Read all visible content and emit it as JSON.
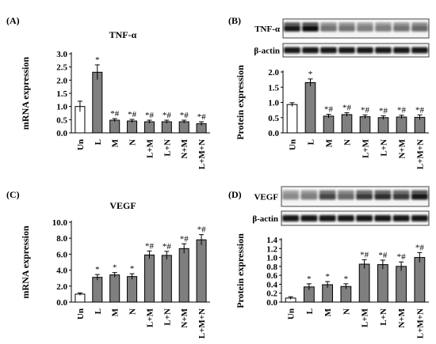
{
  "chart_data": [
    {
      "panel": "(A)",
      "type": "bar",
      "title": "TNF-α",
      "ylabel": "mRNA expression",
      "xlabel": "",
      "categories": [
        "Un",
        "L",
        "M",
        "N",
        "L+M",
        "L+N",
        "N+M",
        "L+M+N"
      ],
      "values": [
        1.0,
        2.3,
        0.48,
        0.45,
        0.42,
        0.42,
        0.42,
        0.35
      ],
      "errors": [
        0.2,
        0.28,
        0.06,
        0.06,
        0.06,
        0.06,
        0.06,
        0.07
      ],
      "sig": [
        "",
        "*",
        "*#",
        "*#",
        "*#",
        "*#",
        "*#",
        "*#"
      ],
      "ylim": [
        0,
        3.0
      ],
      "yticks": [
        "0.0",
        "0.5",
        "1.0",
        "1.5",
        "2.0",
        "2.5",
        "3.0"
      ],
      "grid": false,
      "colors": {
        "control": "#ffffff",
        "treated": "#7f7f7f"
      }
    },
    {
      "panel": "(B)",
      "type": "bar",
      "title": "",
      "ylabel": "Protein expression",
      "xlabel": "",
      "categories": [
        "Un",
        "L",
        "M",
        "N",
        "L+M",
        "L+N",
        "N+M",
        "L+M+N"
      ],
      "values": [
        0.93,
        1.65,
        0.55,
        0.6,
        0.53,
        0.5,
        0.52,
        0.51
      ],
      "errors": [
        0.06,
        0.12,
        0.06,
        0.06,
        0.06,
        0.06,
        0.06,
        0.08
      ],
      "sig": [
        "",
        "*",
        "*#",
        "*#",
        "*#",
        "*#",
        "*#",
        "*#"
      ],
      "ylim": [
        0,
        2.0
      ],
      "yticks": [
        "0.0",
        "0.5",
        "1.0",
        "1.5",
        "2.0"
      ],
      "grid": false,
      "blot_labels": [
        "TNF-α",
        "β-actin"
      ],
      "colors": {
        "control": "#ffffff",
        "treated": "#7f7f7f"
      }
    },
    {
      "panel": "(C)",
      "type": "bar",
      "title": "VEGF",
      "ylabel": "mRNA expression",
      "xlabel": "",
      "categories": [
        "Un",
        "L",
        "M",
        "N",
        "L+M",
        "L+N",
        "N+M",
        "L+M+N"
      ],
      "values": [
        1.0,
        3.1,
        3.4,
        3.2,
        5.9,
        5.85,
        6.7,
        7.8
      ],
      "errors": [
        0.15,
        0.35,
        0.3,
        0.35,
        0.5,
        0.5,
        0.6,
        0.65
      ],
      "sig": [
        "",
        "*",
        "*",
        "*",
        "*#",
        "*#",
        "*#",
        "*#"
      ],
      "ylim": [
        0,
        10.0
      ],
      "yticks": [
        "0.0",
        "2.0",
        "4.0",
        "6.0",
        "8.0",
        "10.0"
      ],
      "grid": false,
      "colors": {
        "control": "#ffffff",
        "treated": "#7f7f7f"
      }
    },
    {
      "panel": "(D)",
      "type": "bar",
      "title": "",
      "ylabel": "Protein expression",
      "xlabel": "",
      "categories": [
        "Un",
        "L",
        "M",
        "N",
        "L+M",
        "L+N",
        "N+M",
        "L+M+N"
      ],
      "values": [
        0.09,
        0.34,
        0.39,
        0.35,
        0.85,
        0.84,
        0.8,
        1.0
      ],
      "errors": [
        0.03,
        0.07,
        0.07,
        0.06,
        0.1,
        0.1,
        0.1,
        0.11
      ],
      "sig": [
        "",
        "*",
        "*",
        "*",
        "*#",
        "*#",
        "*#",
        "*#"
      ],
      "ylim": [
        0,
        1.4
      ],
      "yticks": [
        "0.0",
        "0.2",
        "0.4",
        "0.6",
        "0.8",
        "1.0",
        "1.2",
        "1.4"
      ],
      "grid": false,
      "blot_labels": [
        "VEGF",
        "β-actin"
      ],
      "colors": {
        "control": "#ffffff",
        "treated": "#7f7f7f"
      }
    }
  ]
}
